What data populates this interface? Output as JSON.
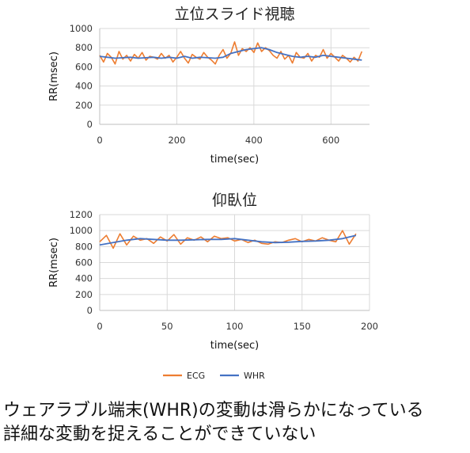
{
  "colors": {
    "ecg": "#ED7D31",
    "whr": "#4472C4",
    "grid": "#d9d9d9"
  },
  "legend": {
    "position": "bottom",
    "items": [
      "ECG",
      "WHR"
    ]
  },
  "caption": {
    "line1": "ウェアラブル端末(WHR)の変動は滑らかになっている",
    "line2": "詳細な変動を捉えることができていない"
  },
  "chart_data": [
    {
      "type": "line",
      "title": "立位スライド視聴",
      "xlabel": "time(sec)",
      "ylabel": "RR(msec)",
      "xlim": [
        0,
        700
      ],
      "ylim": [
        0,
        1000
      ],
      "xticks": [
        0,
        200,
        400,
        600
      ],
      "yticks": [
        0,
        200,
        400,
        600,
        800,
        1000
      ],
      "grid": true,
      "series": [
        {
          "name": "ECG",
          "x": [
            0,
            10,
            20,
            30,
            40,
            50,
            60,
            70,
            80,
            90,
            100,
            110,
            120,
            130,
            140,
            150,
            160,
            170,
            180,
            190,
            200,
            210,
            220,
            230,
            240,
            250,
            260,
            270,
            280,
            290,
            300,
            310,
            320,
            330,
            340,
            350,
            360,
            370,
            380,
            390,
            400,
            410,
            420,
            430,
            440,
            450,
            460,
            470,
            480,
            490,
            500,
            510,
            520,
            530,
            540,
            550,
            560,
            570,
            580,
            590,
            600,
            610,
            620,
            630,
            640,
            650,
            660,
            670,
            680
          ],
          "values": [
            720,
            650,
            740,
            700,
            630,
            760,
            680,
            720,
            660,
            730,
            690,
            750,
            670,
            710,
            700,
            680,
            740,
            690,
            720,
            650,
            700,
            760,
            690,
            640,
            730,
            700,
            680,
            750,
            700,
            670,
            630,
            720,
            780,
            690,
            740,
            860,
            720,
            790,
            760,
            800,
            750,
            850,
            760,
            800,
            770,
            720,
            690,
            760,
            680,
            720,
            640,
            750,
            700,
            690,
            740,
            660,
            720,
            700,
            780,
            690,
            740,
            700,
            660,
            720,
            690,
            650,
            700,
            660,
            760
          ]
        },
        {
          "name": "WHR",
          "x": [
            0,
            20,
            40,
            60,
            80,
            100,
            120,
            140,
            160,
            180,
            200,
            220,
            240,
            260,
            280,
            300,
            320,
            340,
            360,
            380,
            400,
            420,
            440,
            460,
            480,
            500,
            520,
            540,
            560,
            580,
            600,
            620,
            640,
            660,
            680
          ],
          "values": [
            710,
            700,
            690,
            695,
            700,
            690,
            695,
            700,
            690,
            700,
            690,
            710,
            690,
            700,
            695,
            690,
            700,
            740,
            760,
            780,
            790,
            800,
            780,
            750,
            730,
            710,
            700,
            710,
            700,
            720,
            710,
            700,
            690,
            680,
            670
          ]
        }
      ]
    },
    {
      "type": "line",
      "title": "仰臥位",
      "xlabel": "time(sec)",
      "ylabel": "RR(msec)",
      "xlim": [
        0,
        200
      ],
      "ylim": [
        0,
        1200
      ],
      "xticks": [
        0,
        50,
        100,
        150,
        200
      ],
      "yticks": [
        0,
        200,
        400,
        600,
        800,
        1000,
        1200
      ],
      "grid": true,
      "series": [
        {
          "name": "ECG",
          "x": [
            0,
            5,
            10,
            15,
            20,
            25,
            30,
            35,
            40,
            45,
            50,
            55,
            60,
            65,
            70,
            75,
            80,
            85,
            90,
            95,
            100,
            105,
            110,
            115,
            120,
            125,
            130,
            135,
            140,
            145,
            150,
            155,
            160,
            165,
            170,
            175,
            180,
            185,
            190
          ],
          "values": [
            860,
            940,
            780,
            960,
            820,
            930,
            880,
            900,
            840,
            920,
            870,
            950,
            830,
            910,
            880,
            920,
            860,
            930,
            900,
            910,
            870,
            890,
            850,
            880,
            840,
            830,
            860,
            850,
            880,
            900,
            860,
            890,
            870,
            910,
            880,
            860,
            1000,
            830,
            960
          ]
        },
        {
          "name": "WHR",
          "x": [
            0,
            10,
            20,
            30,
            40,
            50,
            60,
            70,
            80,
            90,
            100,
            110,
            120,
            130,
            140,
            150,
            160,
            170,
            180,
            190
          ],
          "values": [
            820,
            850,
            880,
            900,
            890,
            880,
            880,
            885,
            890,
            890,
            900,
            880,
            860,
            850,
            855,
            865,
            870,
            880,
            900,
            940
          ]
        }
      ]
    }
  ]
}
